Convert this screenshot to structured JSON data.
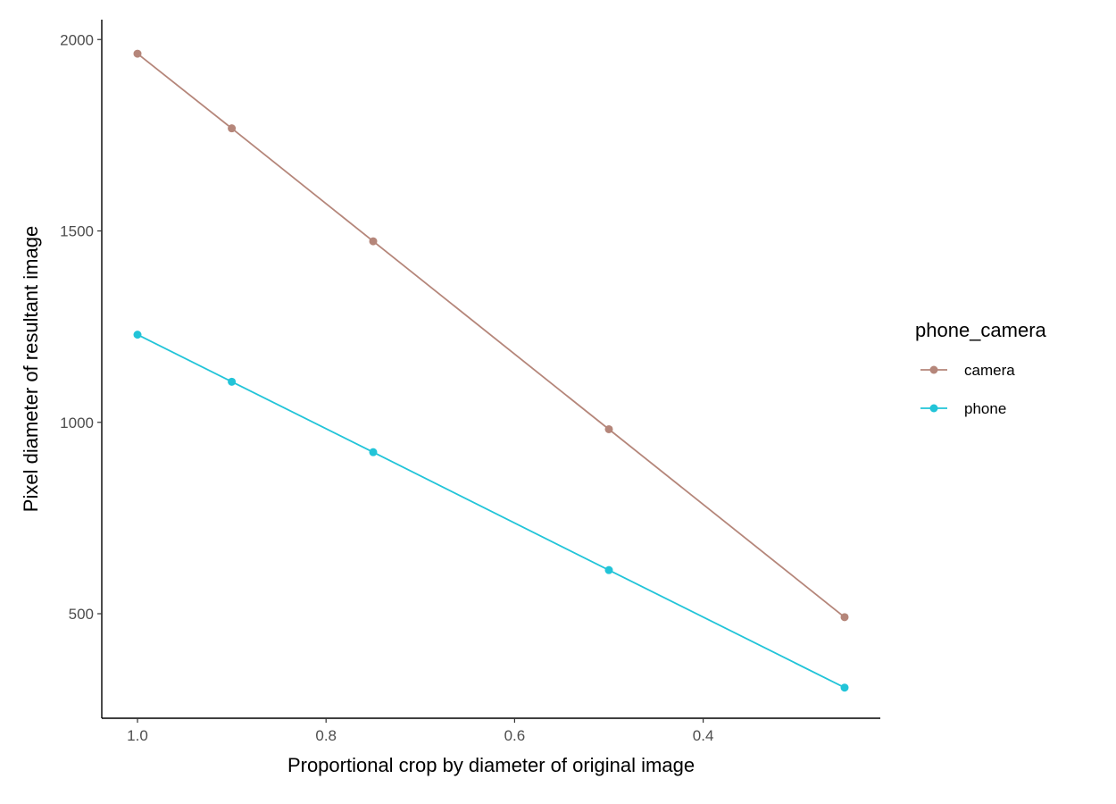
{
  "chart_data": {
    "type": "line",
    "xlabel": "Proportional crop by diameter of original image",
    "ylabel": "Pixel diameter of resultant image",
    "x_reversed": true,
    "xlim": [
      1.0,
      0.2
    ],
    "ylim": [
      270,
      2060
    ],
    "x_ticks": [
      1.0,
      0.8,
      0.6,
      0.4
    ],
    "x_tick_labels": [
      "1.0",
      "0.8",
      "0.6",
      "0.4"
    ],
    "y_ticks": [
      500,
      1000,
      1500,
      2000
    ],
    "y_tick_labels": [
      "500",
      "1000",
      "1500",
      "2000"
    ],
    "grid": false,
    "legend": {
      "title": "phone_camera",
      "position": "right"
    },
    "series": [
      {
        "name": "camera",
        "color": "#b5867a",
        "x": [
          1.0,
          0.9,
          0.75,
          0.5,
          0.25
        ],
        "y": [
          1963,
          1768,
          1473,
          982,
          491
        ]
      },
      {
        "name": "phone",
        "color": "#22c4d8",
        "x": [
          1.0,
          0.9,
          0.75,
          0.5,
          0.25
        ],
        "y": [
          1229,
          1106,
          922,
          614,
          307
        ]
      }
    ]
  }
}
